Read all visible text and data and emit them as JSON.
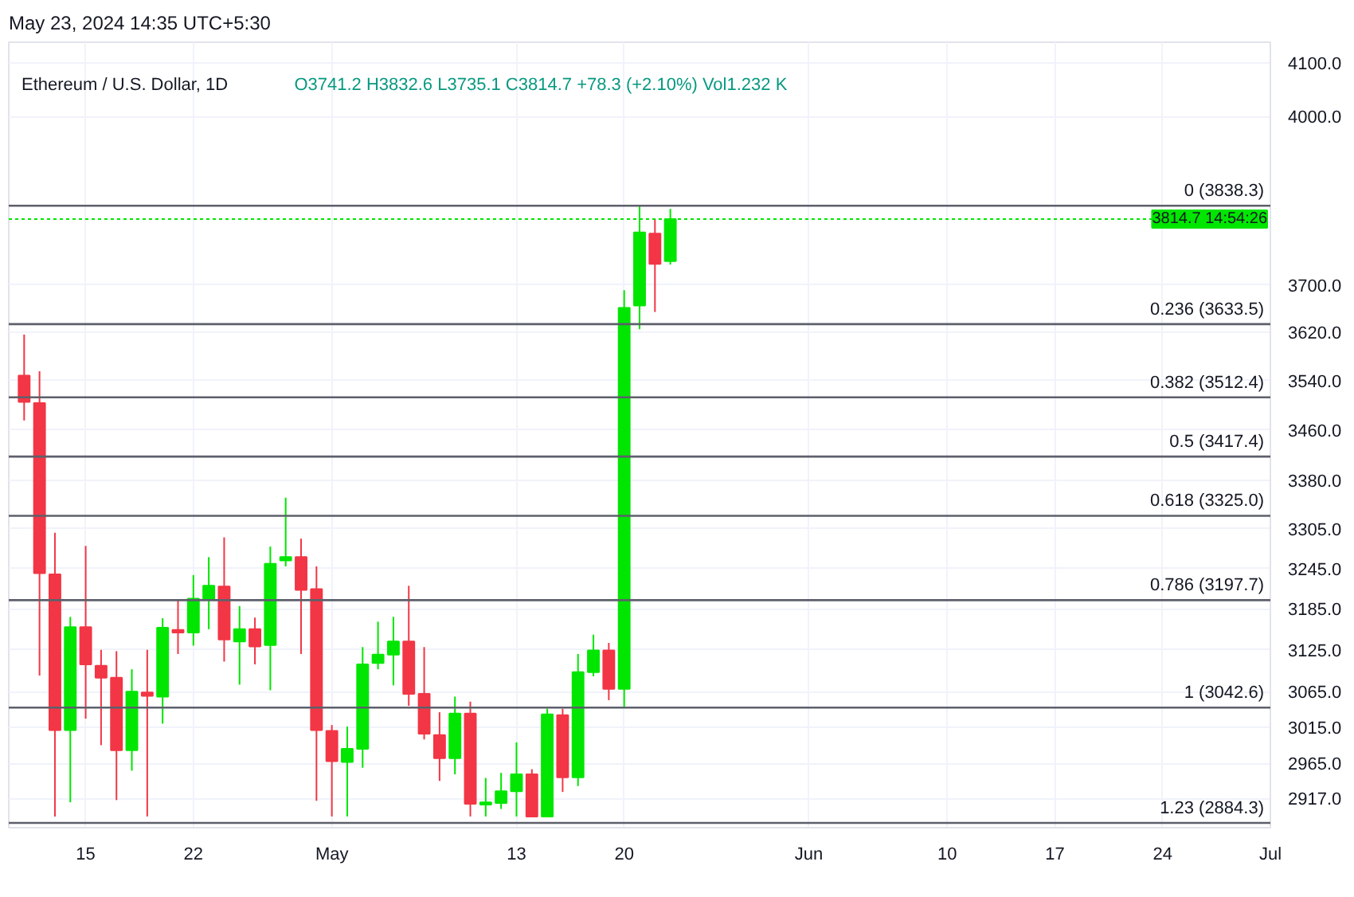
{
  "chart_data": {
    "type": "candlestick",
    "title": "Ethereum / U.S. Dollar, 1D",
    "subtitle": "May 23, 2024 14:35 UTC+5:30",
    "annotations": [
      "O3741.2  H3832.6  L3735.1  C3814.7  +78.3 (+2.10%)  Vol1.232 K"
    ],
    "x": [
      "2024-04-11",
      "2024-04-12",
      "2024-04-13",
      "2024-04-14",
      "2024-04-15",
      "2024-04-16",
      "2024-04-17",
      "2024-04-18",
      "2024-04-19",
      "2024-04-20",
      "2024-04-21",
      "2024-04-22",
      "2024-04-23",
      "2024-04-24",
      "2024-04-25",
      "2024-04-26",
      "2024-04-27",
      "2024-04-28",
      "2024-04-29",
      "2024-04-30",
      "2024-05-01",
      "2024-05-02",
      "2024-05-03",
      "2024-05-04",
      "2024-05-05",
      "2024-05-06",
      "2024-05-07",
      "2024-05-08",
      "2024-05-09",
      "2024-05-10",
      "2024-05-11",
      "2024-05-12",
      "2024-05-13",
      "2024-05-14",
      "2024-05-15",
      "2024-05-16",
      "2024-05-17",
      "2024-05-18",
      "2024-05-19",
      "2024-05-20",
      "2024-05-21",
      "2024-05-22",
      "2024-05-23"
    ],
    "ohlc": [
      [
        3548,
        3616,
        3475,
        3505
      ],
      [
        3503,
        3555,
        3088,
        3238
      ],
      [
        3236,
        3299,
        2893,
        3011
      ],
      [
        3011,
        3173,
        2912,
        3158
      ],
      [
        3158,
        3279,
        3027,
        3104
      ],
      [
        3102,
        3125,
        2990,
        3085
      ],
      [
        3085,
        3123,
        2915,
        2983
      ],
      [
        2983,
        3097,
        2955,
        3065
      ],
      [
        3064,
        3125,
        2893,
        3059
      ],
      [
        3058,
        3171,
        3020,
        3157
      ],
      [
        3154,
        3197,
        3119,
        3150
      ],
      [
        3150,
        3235,
        3131,
        3200
      ],
      [
        3199,
        3262,
        3155,
        3219
      ],
      [
        3218,
        3292,
        3108,
        3140
      ],
      [
        3137,
        3189,
        3075,
        3155
      ],
      [
        3155,
        3172,
        3104,
        3130
      ],
      [
        3132,
        3278,
        3067,
        3252
      ],
      [
        3257,
        3353,
        3248,
        3262
      ],
      [
        3262,
        3290,
        3119,
        3213
      ],
      [
        3214,
        3248,
        2914,
        3011
      ],
      [
        3010,
        3018,
        2893,
        2968
      ],
      [
        2967,
        3016,
        2893,
        2985
      ],
      [
        2985,
        3129,
        2959,
        3104
      ],
      [
        3106,
        3166,
        3097,
        3118
      ],
      [
        3118,
        3173,
        3074,
        3137
      ],
      [
        3137,
        3219,
        3045,
        3062
      ],
      [
        3062,
        3129,
        2998,
        3006
      ],
      [
        3004,
        3036,
        2941,
        2972
      ],
      [
        2972,
        3058,
        2950,
        3034
      ],
      [
        3034,
        3051,
        2893,
        2910
      ],
      [
        2909,
        2945,
        2893,
        2912
      ],
      [
        2911,
        2952,
        2903,
        2927
      ],
      [
        2927,
        2994,
        2893,
        2950
      ],
      [
        2950,
        2957,
        2893,
        2893
      ],
      [
        2893,
        3041,
        2893,
        3033
      ],
      [
        3032,
        3041,
        2926,
        2946
      ],
      [
        2946,
        3119,
        2934,
        3093
      ],
      [
        3093,
        3147,
        3087,
        3124
      ],
      [
        3124,
        3135,
        3053,
        3069
      ],
      [
        3069,
        3691,
        3042.6,
        3661
      ],
      [
        3665,
        3838.3,
        3625,
        3791
      ],
      [
        3789,
        3815,
        3654,
        3736.4
      ],
      [
        3741.2,
        3832.6,
        3735.1,
        3814.7
      ]
    ],
    "colors": [
      "#f23645",
      "#f23645",
      "#f23645",
      "#00e600",
      "#f23645",
      "#f23645",
      "#f23645",
      "#00e600",
      "#f23645",
      "#00e600",
      "#f23645",
      "#00e600",
      "#00e600",
      "#f23645",
      "#00e600",
      "#f23645",
      "#00e600",
      "#00e600",
      "#f23645",
      "#f23645",
      "#f23645",
      "#00e600",
      "#00e600",
      "#00e600",
      "#00e600",
      "#f23645",
      "#f23645",
      "#f23645",
      "#00e600",
      "#f23645",
      "#00e600",
      "#00e600",
      "#00e600",
      "#f23645",
      "#00e600",
      "#f23645",
      "#00e600",
      "#00e600",
      "#f23645",
      "#00e600",
      "#00e600",
      "#f23645",
      "#00e600"
    ],
    "log": "y",
    "grid": true,
    "xlim": [
      "2024-04-10",
      "2024-07-01"
    ],
    "xticks": [
      {
        "value": "2024-04-15",
        "label": "15"
      },
      {
        "value": "2024-04-22",
        "label": "22"
      },
      {
        "value": "2024-05-01",
        "label": "May"
      },
      {
        "value": "2024-05-13",
        "label": "13"
      },
      {
        "value": "2024-05-20",
        "label": "20"
      },
      {
        "value": "2024-06-01",
        "label": "Jun"
      },
      {
        "value": "2024-06-10",
        "label": "10"
      },
      {
        "value": "2024-06-17",
        "label": "17"
      },
      {
        "value": "2024-06-24",
        "label": "24"
      },
      {
        "value": "2024-07-01",
        "label": "Jul"
      }
    ],
    "ylim": [
      2878,
      4140
    ],
    "yticks": [
      {
        "value": 2917,
        "label": "2917.0"
      },
      {
        "value": 2965,
        "label": "2965.0"
      },
      {
        "value": 3015,
        "label": "3015.0"
      },
      {
        "value": 3065,
        "label": "3065.0"
      },
      {
        "value": 3125,
        "label": "3125.0"
      },
      {
        "value": 3185,
        "label": "3185.0"
      },
      {
        "value": 3245,
        "label": "3245.0"
      },
      {
        "value": 3305,
        "label": "3305.0"
      },
      {
        "value": 3380,
        "label": "3380.0"
      },
      {
        "value": 3460,
        "label": "3460.0"
      },
      {
        "value": 3540,
        "label": "3540.0"
      },
      {
        "value": 3620,
        "label": "3620.0"
      },
      {
        "value": 3700,
        "label": "3700.0"
      },
      {
        "value": 4000,
        "label": "4000.0"
      },
      {
        "value": 4100,
        "label": "4100.0"
      }
    ],
    "ref_lines": [
      {
        "axis": "y",
        "value": 3838.3,
        "label": "0 (3838.3)",
        "color": "#5d606b",
        "line_style": "solid"
      },
      {
        "axis": "y",
        "value": 3633.5,
        "label": "0.236 (3633.5)",
        "color": "#5d606b",
        "line_style": "solid"
      },
      {
        "axis": "y",
        "value": 3512.4,
        "label": "0.382 (3512.4)",
        "color": "#5d606b",
        "line_style": "solid"
      },
      {
        "axis": "y",
        "value": 3417.4,
        "label": "0.5 (3417.4)",
        "color": "#5d606b",
        "line_style": "solid"
      },
      {
        "axis": "y",
        "value": 3325.0,
        "label": "0.618 (3325.0)",
        "color": "#5d606b",
        "line_style": "solid"
      },
      {
        "axis": "y",
        "value": 3197.7,
        "label": "0.786 (3197.7)",
        "color": "#5d606b",
        "line_style": "solid"
      },
      {
        "axis": "y",
        "value": 3042.6,
        "label": "1 (3042.6)",
        "color": "#5d606b",
        "line_style": "solid"
      },
      {
        "axis": "y",
        "value": 2884.3,
        "label": "1.23 (2884.3)",
        "color": "#5d606b",
        "line_style": "solid"
      },
      {
        "axis": "y",
        "value": 3814.7,
        "label": "3814.7 14:54:26",
        "color": "#00e600",
        "line_style": "dotted"
      }
    ]
  }
}
